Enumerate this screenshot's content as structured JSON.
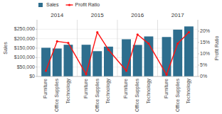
{
  "chart_data": {
    "type": "bar",
    "y_label": "Sales",
    "y2_label": "Profit Ratio",
    "groups": [
      "2014",
      "2015",
      "2016",
      "2017"
    ],
    "categories": [
      "Furniture",
      "Office Supplies",
      "Technology",
      "Furniture",
      "Office Supplies",
      "Technology",
      "Furniture",
      "Office Supplies",
      "Technology",
      "Furniture",
      "Office Supplies",
      "Technology"
    ],
    "series": [
      {
        "name": "Sales",
        "type": "bar",
        "color": "#2e6e8e",
        "values": [
          152000,
          148000,
          168000,
          168000,
          134000,
          158000,
          197000,
          167000,
          212000,
          209000,
          248000,
          265000
        ]
      },
      {
        "name": "Profit Ratio",
        "type": "line",
        "axis": "y2",
        "color": "#ff1111",
        "marker": "circle",
        "values": [
          0.025,
          0.155,
          0.148,
          0.01,
          0.195,
          0.118,
          0.025,
          0.185,
          0.145,
          0.008,
          0.145,
          0.195
        ]
      }
    ],
    "ylim": [
      0,
      300000
    ],
    "yticks": [
      {
        "value": 0,
        "label": "$0"
      },
      {
        "value": 50000,
        "label": "$50,000"
      },
      {
        "value": 100000,
        "label": "$100,000"
      },
      {
        "value": 150000,
        "label": "$150,000"
      },
      {
        "value": 200000,
        "label": "$200,000"
      },
      {
        "value": 250000,
        "label": "$250,000"
      }
    ],
    "y2lim": [
      0,
      0.25
    ],
    "y2ticks": [
      {
        "value": 0.0,
        "label": "0%"
      },
      {
        "value": 0.05,
        "label": "5%"
      },
      {
        "value": 0.1,
        "label": "10%"
      },
      {
        "value": 0.15,
        "label": "15%"
      },
      {
        "value": 0.2,
        "label": "20%"
      }
    ],
    "grid": true,
    "legend": "top"
  }
}
